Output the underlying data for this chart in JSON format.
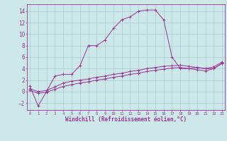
{
  "xlabel": "Windchill (Refroidissement éolien,°C)",
  "background_color": "#cde8e8",
  "grid_color": "#aacccc",
  "line_color": "#993399",
  "x_ticks": [
    0,
    1,
    2,
    3,
    4,
    5,
    6,
    7,
    8,
    9,
    10,
    11,
    12,
    13,
    14,
    15,
    16,
    17,
    18,
    19,
    20,
    21,
    22,
    23
  ],
  "y_ticks": [
    -2,
    0,
    2,
    4,
    6,
    8,
    10,
    12,
    14
  ],
  "xlim": [
    -0.3,
    23.3
  ],
  "ylim": [
    -3.2,
    15.2
  ],
  "series": [
    {
      "x": [
        0,
        1,
        2,
        3,
        4,
        5,
        6,
        7,
        8,
        9,
        10,
        11,
        12,
        13,
        14,
        15,
        16,
        17,
        18,
        19,
        20,
        21,
        22,
        23
      ],
      "y": [
        1,
        -2.5,
        0,
        2.7,
        3,
        3,
        4.5,
        8,
        8,
        9,
        11,
        12.5,
        13,
        14,
        14.2,
        14.2,
        12.5,
        6,
        4,
        4,
        4.2,
        4,
        4,
        5
      ]
    },
    {
      "x": [
        0,
        1,
        2,
        3,
        4,
        5,
        6,
        7,
        8,
        9,
        10,
        11,
        12,
        13,
        14,
        15,
        16,
        17,
        18,
        19,
        20,
        21,
        22,
        23
      ],
      "y": [
        0.5,
        0,
        0.2,
        0.8,
        1.5,
        1.8,
        2.0,
        2.2,
        2.5,
        2.7,
        3.0,
        3.2,
        3.5,
        3.7,
        4.0,
        4.2,
        4.4,
        4.5,
        4.6,
        4.4,
        4.2,
        4.0,
        4.3,
        5.2
      ]
    },
    {
      "x": [
        0,
        1,
        2,
        3,
        4,
        5,
        6,
        7,
        8,
        9,
        10,
        11,
        12,
        13,
        14,
        15,
        16,
        17,
        18,
        19,
        20,
        21,
        22,
        23
      ],
      "y": [
        0.2,
        -0.3,
        -0.1,
        0.4,
        0.9,
        1.2,
        1.5,
        1.7,
        2.0,
        2.2,
        2.5,
        2.7,
        3.0,
        3.2,
        3.5,
        3.7,
        3.9,
        4.1,
        4.2,
        4.0,
        3.8,
        3.6,
        4.0,
        4.9
      ]
    }
  ]
}
